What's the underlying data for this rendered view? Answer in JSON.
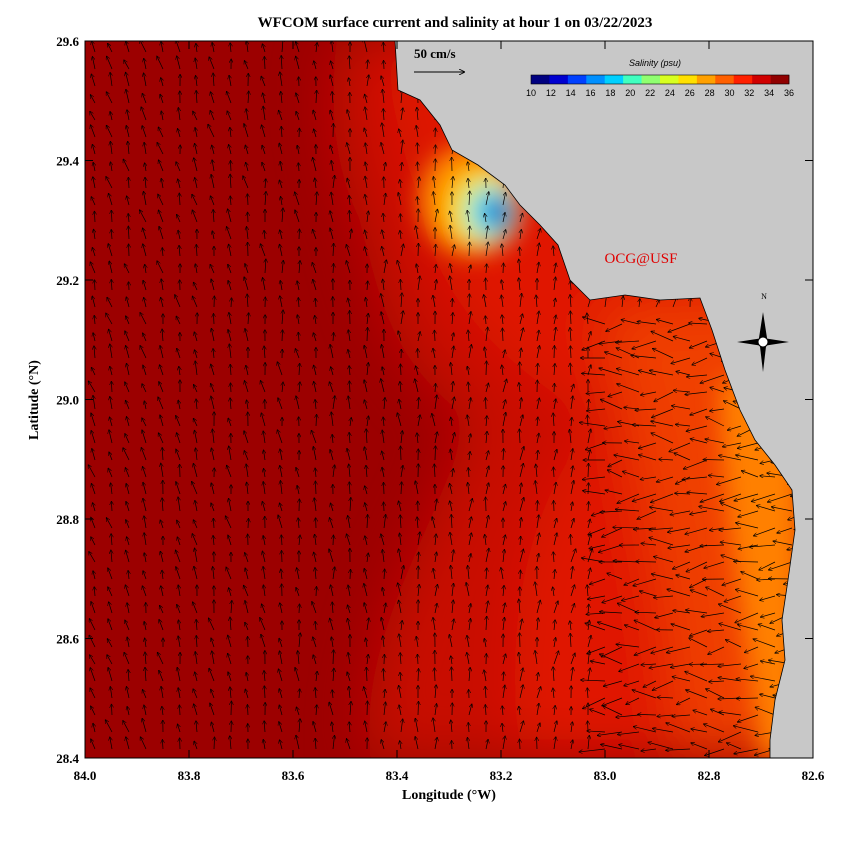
{
  "title": "WFCOM surface current and salinity at hour 1 on 03/22/2023",
  "x_axis": {
    "label": "Longitude (°W)",
    "lim": [
      84.0,
      82.6
    ],
    "ticks": [
      {
        "value": 84.0,
        "label": "84.0"
      },
      83.8,
      83.6,
      83.4,
      83.2,
      {
        "value": 83.0,
        "label": "83.0"
      },
      82.8,
      82.6
    ]
  },
  "y_axis": {
    "label": "Latitude (°N)",
    "lim": [
      28.4,
      29.6
    ],
    "ticks": [
      28.4,
      28.6,
      {
        "value": 28.8,
        "label": "28.8"
      },
      {
        "value": 29.0,
        "label": "29.0"
      },
      29.2,
      29.4,
      29.6
    ]
  },
  "colorbar": {
    "title": "Salinity (psu)",
    "lim": [
      10,
      36
    ],
    "ticks": [
      10,
      12,
      14,
      16,
      18,
      20,
      22,
      24,
      26,
      28,
      30,
      32,
      34,
      36
    ],
    "colors": [
      "#000080",
      "#0000d0",
      "#0040ff",
      "#0090ff",
      "#00d0ff",
      "#40ffc0",
      "#90ff70",
      "#d8ff20",
      "#ffe000",
      "#ffa000",
      "#ff6000",
      "#ff2000",
      "#d00000",
      "#900000"
    ]
  },
  "scale_label": "50 cm/s",
  "credit": "OCG@USF",
  "compass": "N"
}
